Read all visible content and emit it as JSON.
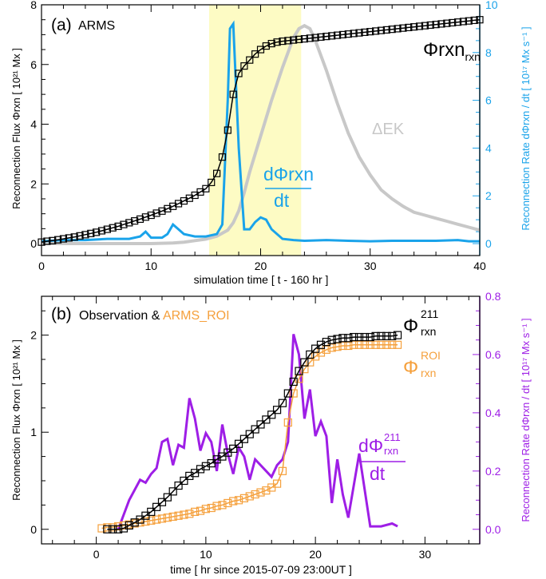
{
  "colors": {
    "black": "#000000",
    "blue": "#1aa3ea",
    "gray": "#c8c8c8",
    "orange": "#f5a03c",
    "purple": "#9e1ee6",
    "shade": "#fdfbc4"
  },
  "chart_data": [
    {
      "type": "line",
      "panel_label": "(a)",
      "title": "ARMS",
      "xlabel": "simulation time   [ t - 160 hr ]",
      "ylabel_left": "Reconnection Flux  Φrxn   [ 10²¹ Mx ]",
      "ylabel_right": "Reconnection Rate  dΦrxn / dt   [ 10¹⁷ Mx s⁻¹ ]",
      "xlim": [
        0,
        40
      ],
      "ylim_left": [
        -0.4,
        8
      ],
      "ylim_right": [
        -0.5,
        10
      ],
      "xticks": [
        "0",
        "10",
        "20",
        "30",
        "40"
      ],
      "yticks_left": [
        "0",
        "2",
        "4",
        "6",
        "8"
      ],
      "yticks_right": [
        "0",
        "2",
        "4",
        "6",
        "8",
        "10"
      ],
      "shaded_interval": [
        15.3,
        23.7
      ],
      "grid": false,
      "labels": {
        "phi": "Φrxn",
        "dEk": "ΔEK",
        "dphi_num": "dΦrxn",
        "dphi_den": "dt"
      },
      "series": [
        {
          "name": "Φrxn",
          "axis": "left",
          "marker": "square",
          "x": [
            0,
            0.5,
            1,
            1.5,
            2,
            2.5,
            3,
            3.5,
            4,
            4.5,
            5,
            5.5,
            6,
            6.5,
            7,
            7.5,
            8,
            8.5,
            9,
            9.5,
            10,
            10.5,
            11,
            11.5,
            12,
            12.5,
            13,
            13.5,
            14,
            14.5,
            15,
            15.5,
            16,
            16.5,
            17,
            17.5,
            18,
            18.5,
            19,
            19.5,
            20,
            20.5,
            21,
            21.5,
            22,
            22.5,
            23,
            23.5,
            24,
            24.5,
            25,
            25.5,
            26,
            26.5,
            27,
            27.5,
            28,
            28.5,
            29,
            29.5,
            30,
            30.5,
            31,
            31.5,
            32,
            32.5,
            33,
            33.5,
            34,
            34.5,
            35,
            35.5,
            36,
            36.5,
            37,
            37.5,
            38,
            38.5,
            39,
            39.5,
            40
          ],
          "y": [
            0.05,
            0.08,
            0.1,
            0.13,
            0.16,
            0.19,
            0.22,
            0.26,
            0.3,
            0.34,
            0.38,
            0.43,
            0.48,
            0.53,
            0.58,
            0.64,
            0.7,
            0.76,
            0.82,
            0.89,
            0.95,
            1.02,
            1.09,
            1.17,
            1.25,
            1.34,
            1.43,
            1.52,
            1.62,
            1.73,
            1.84,
            2.05,
            2.35,
            2.9,
            3.8,
            5.0,
            5.7,
            5.95,
            6.15,
            6.35,
            6.5,
            6.62,
            6.7,
            6.75,
            6.78,
            6.8,
            6.82,
            6.84,
            6.86,
            6.88,
            6.9,
            6.92,
            6.94,
            6.96,
            6.98,
            7.0,
            7.02,
            7.04,
            7.06,
            7.08,
            7.1,
            7.12,
            7.14,
            7.16,
            7.18,
            7.2,
            7.22,
            7.24,
            7.26,
            7.28,
            7.3,
            7.32,
            7.34,
            7.36,
            7.38,
            7.4,
            7.42,
            7.44,
            7.46,
            7.48,
            7.5
          ]
        },
        {
          "name": "ΔEK",
          "axis": "left",
          "x": [
            0,
            2,
            4,
            6,
            8,
            10,
            12,
            13,
            14,
            15,
            16,
            17,
            17.5,
            18,
            18.5,
            19,
            20,
            21,
            22,
            23,
            23.5,
            24,
            24.5,
            25,
            26,
            27,
            28,
            29,
            30,
            31,
            32,
            33,
            34,
            35,
            36,
            37,
            38,
            39,
            40
          ],
          "y": [
            0,
            0,
            0,
            0,
            0,
            0,
            0.02,
            0.05,
            0.1,
            0.15,
            0.25,
            0.45,
            0.7,
            1.1,
            1.7,
            2.4,
            3.6,
            4.8,
            5.9,
            6.9,
            7.2,
            7.3,
            7.2,
            6.8,
            5.8,
            4.7,
            3.7,
            2.9,
            2.3,
            1.8,
            1.5,
            1.25,
            1.05,
            0.95,
            0.85,
            0.75,
            0.65,
            0.55,
            0.45
          ]
        },
        {
          "name": "dΦrxn/dt",
          "axis": "right",
          "x": [
            0,
            2,
            4,
            6,
            8,
            9,
            9.5,
            10,
            11,
            11.5,
            12,
            12.5,
            13,
            14,
            15,
            16,
            16.5,
            17,
            17.2,
            17.5,
            18,
            18.5,
            19,
            19.5,
            20,
            20.5,
            21,
            22,
            23,
            24,
            26,
            28,
            30,
            32,
            34,
            36,
            38,
            39,
            40
          ],
          "y": [
            0.1,
            0.15,
            0.15,
            0.2,
            0.2,
            0.3,
            0.5,
            0.25,
            0.25,
            0.4,
            0.8,
            0.6,
            0.4,
            0.3,
            0.3,
            0.4,
            0.8,
            6.0,
            9.0,
            9.2,
            4.0,
            0.6,
            0.6,
            0.9,
            1.1,
            1.0,
            0.6,
            0.2,
            0.15,
            0.12,
            0.15,
            0.12,
            0.1,
            0.12,
            0.12,
            0.12,
            0.15,
            0.1,
            0.1
          ]
        }
      ]
    },
    {
      "type": "line",
      "panel_label": "(b)",
      "title_prefix": "Observation & ",
      "title_highlight": "ARMS_ROI",
      "xlabel": "time   [ hr since 2015-07-09 23:00UT ]",
      "ylabel_left": "Reconnection Flux  Φrxn   [ 10²¹ Mx ]",
      "ylabel_right": "Reconnection Rate  dΦrxn / dt   [ 10¹⁷ Mx s⁻¹ ]",
      "xlim": [
        -5,
        35
      ],
      "ylim_left": [
        -0.15,
        2.4
      ],
      "ylim_right": [
        -0.05,
        0.8
      ],
      "xticks": [
        "0",
        "10",
        "20",
        "30"
      ],
      "yticks_left": [
        "0",
        "1",
        "2"
      ],
      "yticks_right": [
        "0.0",
        "0.2",
        "0.4",
        "0.6",
        "0.8"
      ],
      "grid": false,
      "labels": {
        "phi211": "Φ",
        "phi211_sup": "211",
        "phi211_sub": "rxn",
        "phiroi": "Φ",
        "phiroi_sup": "ROI",
        "phiroi_sub": "rxn",
        "dphi_num": "dΦ",
        "dphi_sup": "211",
        "dphi_sub": "rxn",
        "dphi_den": "dt"
      },
      "series": [
        {
          "name": "Φrxn 211",
          "axis": "left",
          "marker": "square",
          "x": [
            1,
            1.5,
            2,
            2.5,
            3,
            3.5,
            4,
            4.5,
            5,
            5.5,
            6,
            6.5,
            7,
            7.5,
            8,
            8.5,
            9,
            9.5,
            10,
            10.5,
            11,
            11.5,
            12,
            12.5,
            13,
            13.5,
            14,
            14.5,
            15,
            15.5,
            16,
            16.5,
            17,
            17.5,
            18,
            18.5,
            19,
            19.5,
            20,
            20.5,
            21,
            21.5,
            22,
            22.5,
            23,
            23.5,
            24,
            24.5,
            25,
            25.5,
            26,
            26.5,
            27,
            27.5
          ],
          "y": [
            0,
            0,
            0,
            0.01,
            0.04,
            0.07,
            0.1,
            0.14,
            0.18,
            0.23,
            0.28,
            0.33,
            0.39,
            0.45,
            0.5,
            0.55,
            0.58,
            0.62,
            0.65,
            0.68,
            0.72,
            0.75,
            0.79,
            0.83,
            0.88,
            0.93,
            0.98,
            1.03,
            1.08,
            1.13,
            1.18,
            1.23,
            1.3,
            1.4,
            1.52,
            1.63,
            1.72,
            1.8,
            1.86,
            1.9,
            1.93,
            1.95,
            1.96,
            1.97,
            1.97,
            1.98,
            1.98,
            1.98,
            1.98,
            1.99,
            1.99,
            1.99,
            1.99,
            2.0
          ]
        },
        {
          "name": "Φrxn ROI",
          "axis": "left",
          "marker": "square",
          "x": [
            0.5,
            1,
            1.5,
            2,
            2.5,
            3,
            3.5,
            4,
            4.5,
            5,
            5.5,
            6,
            6.5,
            7,
            7.5,
            8,
            8.5,
            9,
            9.5,
            10,
            10.5,
            11,
            11.5,
            12,
            12.5,
            13,
            13.5,
            14,
            14.5,
            15,
            15.5,
            16,
            16.5,
            17,
            17.5,
            18,
            18.5,
            19,
            19.5,
            20,
            20.5,
            21,
            21.5,
            22,
            22.5,
            23,
            23.5,
            24,
            24.5,
            25,
            25.5,
            26,
            26.5,
            27,
            27.5
          ],
          "y": [
            0.01,
            0.02,
            0.02,
            0.03,
            0.04,
            0.05,
            0.06,
            0.07,
            0.08,
            0.09,
            0.1,
            0.11,
            0.12,
            0.13,
            0.14,
            0.15,
            0.16,
            0.18,
            0.19,
            0.21,
            0.22,
            0.24,
            0.25,
            0.27,
            0.29,
            0.3,
            0.32,
            0.34,
            0.36,
            0.38,
            0.4,
            0.43,
            0.47,
            0.6,
            1.1,
            1.4,
            1.55,
            1.65,
            1.72,
            1.78,
            1.82,
            1.85,
            1.87,
            1.88,
            1.89,
            1.89,
            1.9,
            1.9,
            1.9,
            1.9,
            1.9,
            1.9,
            1.9,
            1.9,
            1.9
          ]
        },
        {
          "name": "dΦrxn 211 / dt",
          "axis": "right",
          "x": [
            2,
            3,
            4,
            4.5,
            5,
            5.5,
            6,
            6.5,
            7,
            7.5,
            8,
            8.5,
            9,
            9.5,
            10,
            10.5,
            11,
            11.5,
            12,
            12.5,
            13,
            13.5,
            14,
            14.5,
            15,
            15.5,
            16,
            16.5,
            17,
            17.5,
            18,
            18.5,
            19,
            19.5,
            20,
            20.5,
            21,
            21.5,
            22,
            22.5,
            23,
            24,
            25,
            25.5,
            26,
            27,
            27.5
          ],
          "y": [
            0,
            0.1,
            0.17,
            0.16,
            0.19,
            0.21,
            0.3,
            0.31,
            0.22,
            0.29,
            0.28,
            0.45,
            0.38,
            0.27,
            0.33,
            0.3,
            0.2,
            0.36,
            0.26,
            0.19,
            0.28,
            0.25,
            0.17,
            0.24,
            0.22,
            0.2,
            0.18,
            0.22,
            0.24,
            0.3,
            0.67,
            0.6,
            0.38,
            0.48,
            0.32,
            0.37,
            0.32,
            0.09,
            0.24,
            0.12,
            0.04,
            0.26,
            0.01,
            0.01,
            0.01,
            0.02,
            0.01
          ]
        }
      ]
    }
  ]
}
